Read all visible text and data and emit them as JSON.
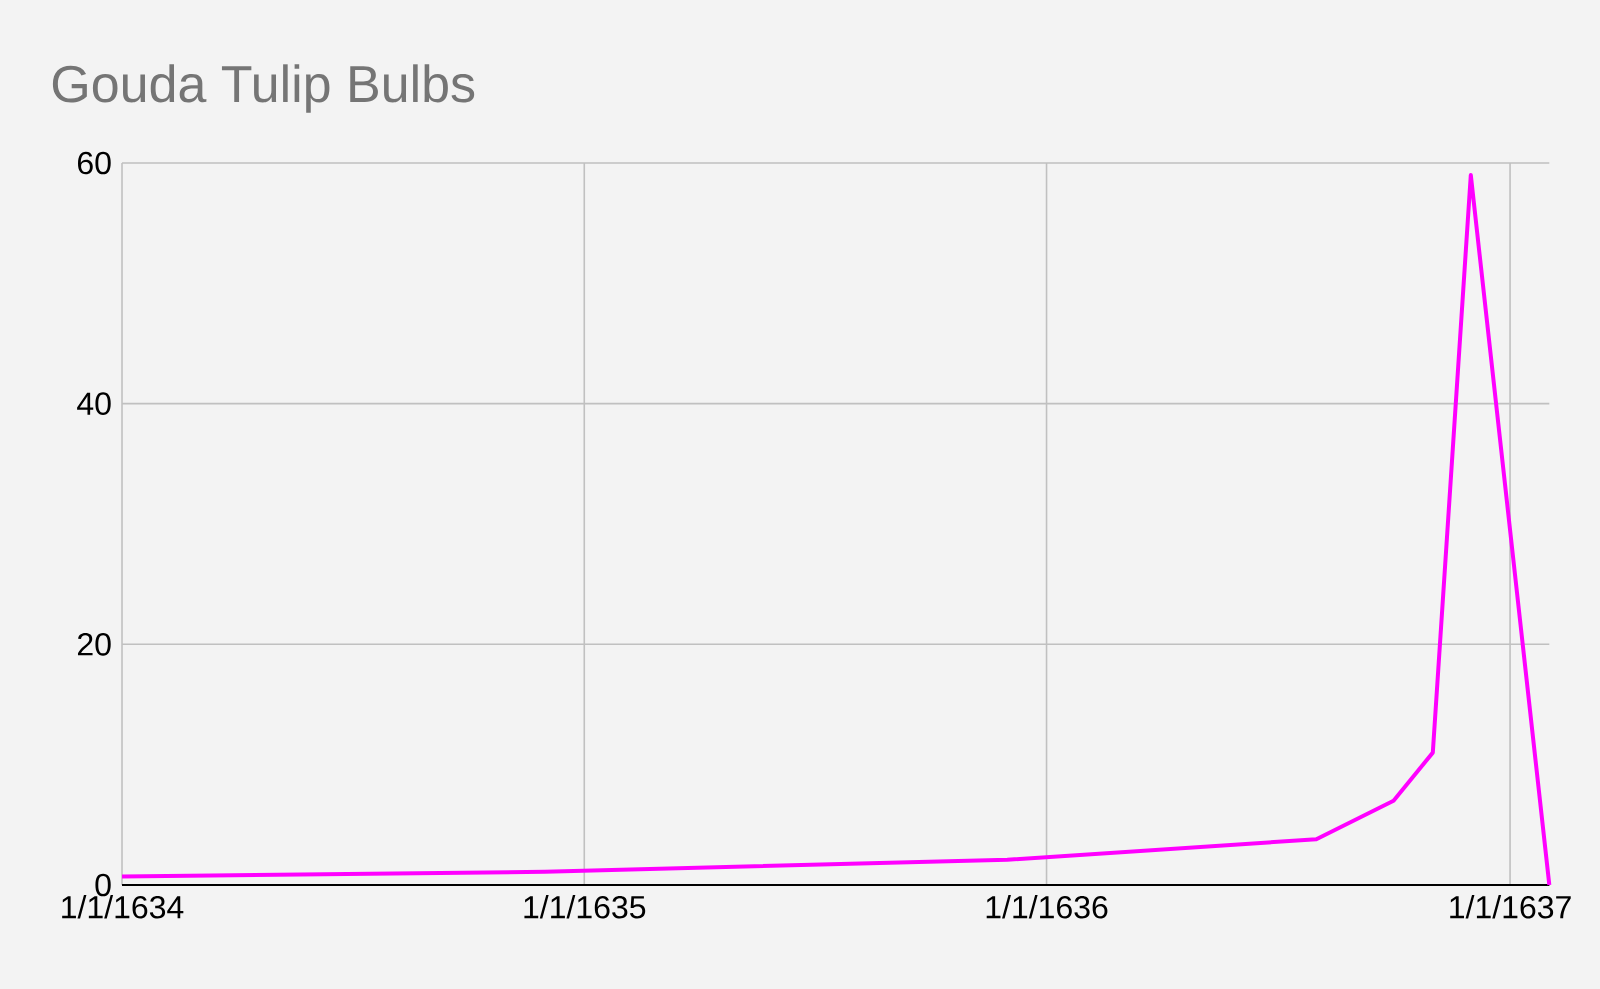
{
  "chart_data": {
    "type": "line",
    "title": "Gouda Tulip Bulbs",
    "x": [
      "1634-01-01",
      "1634-12-01",
      "1635-12-01",
      "1636-08-01",
      "1636-10-01",
      "1636-11-01",
      "1636-12-01",
      "1637-02-01"
    ],
    "series": [
      {
        "color": "#ff00ff",
        "values": [
          0.7,
          1.1,
          2.1,
          3.8,
          7,
          11,
          59,
          0
        ]
      }
    ],
    "xlim": [
      "1634-01-01",
      "1637-02-01"
    ],
    "xticks": [
      {
        "value": "1634-01-01",
        "label": "1/1/1634"
      },
      {
        "value": "1635-01-01",
        "label": "1/1/1635"
      },
      {
        "value": "1636-01-01",
        "label": "1/1/1636"
      },
      {
        "value": "1637-01-01",
        "label": "1/1/1637"
      }
    ],
    "ylim": [
      0,
      60
    ],
    "yticks": [
      0,
      20,
      40,
      60
    ],
    "grid": true
  }
}
